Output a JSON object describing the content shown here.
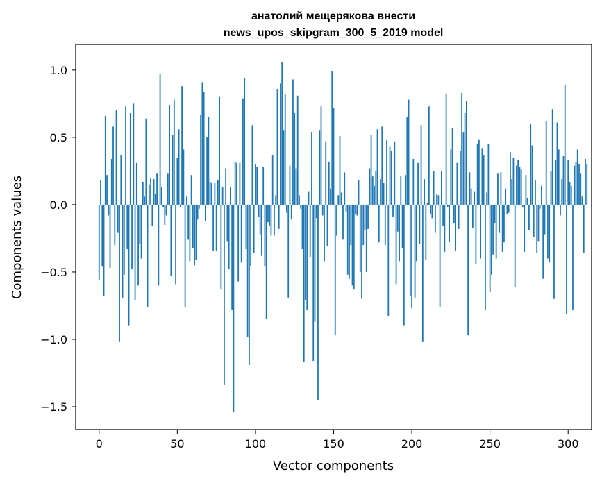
{
  "chart_data": {
    "type": "bar",
    "title_line1": "анатолий мещерякова внести",
    "title_line2": "news_upos_skipgram_300_5_2019 model",
    "xlabel": "Vector components",
    "ylabel": "Components values",
    "xlim": [
      -15,
      315
    ],
    "ylim": [
      -1.67,
      1.19
    ],
    "xticks": [
      0,
      50,
      100,
      150,
      200,
      250,
      300
    ],
    "yticks": [
      -1.5,
      -1.0,
      -0.5,
      0.0,
      0.5,
      1.0
    ],
    "ytick_labels": [
      "−1.5",
      "−1.0",
      "−0.5",
      "0.0",
      "0.5",
      "1.0"
    ],
    "bar_color": "#1f77b4",
    "grid": false,
    "values": [
      -0.56,
      0.18,
      -0.46,
      -0.68,
      0.66,
      0.22,
      -0.08,
      -0.47,
      0.34,
      0.58,
      -0.3,
      0.7,
      -0.21,
      -1.02,
      0.37,
      -0.69,
      -0.52,
      0.73,
      -0.33,
      -0.9,
      0.68,
      -0.48,
      0.75,
      -0.71,
      0.31,
      -0.6,
      -0.29,
      -0.4,
      0.17,
      0.06,
      0.64,
      -0.76,
      0.15,
      0.2,
      -0.16,
      0.19,
      0.08,
      0.23,
      -0.6,
      0.97,
      0.13,
      -0.02,
      -0.15,
      -0.08,
      0.23,
      0.74,
      -0.53,
      0.52,
      0.78,
      -0.59,
      0.35,
      0.56,
      -0.02,
      0.88,
      0.41,
      -0.76,
      0.06,
      -0.26,
      -0.42,
      0.22,
      -0.32,
      -0.45,
      -0.41,
      -0.11,
      -0.03,
      0.67,
      0.91,
      0.84,
      -0.12,
      0.5,
      0.65,
      0.17,
      0.16,
      -0.34,
      0.16,
      -0.34,
      0.18,
      0.8,
      -0.63,
      0.13,
      -1.34,
      0.27,
      -0.27,
      -0.48,
      0.13,
      -0.78,
      -1.54,
      0.32,
      0.31,
      -0.57,
      0.31,
      -0.43,
      0.79,
      0.94,
      -0.33,
      -0.98,
      -1.19,
      -0.46,
      0.59,
      -0.36,
      0.3,
      0.28,
      -0.09,
      -0.22,
      -0.38,
      0.28,
      -0.46,
      -0.85,
      -0.13,
      -0.16,
      -0.23,
      0.37,
      -0.23,
      0.07,
      0.86,
      -0.18,
      0.9,
      1.06,
      0.55,
      0.82,
      -0.06,
      -0.69,
      0.29,
      -0.11,
      0.93,
      0.68,
      0.27,
      0.81,
      0.07,
      -0.03,
      -0.33,
      -1.17,
      -0.71,
      -0.78,
      0.1,
      -0.39,
      0.54,
      -1.16,
      -0.87,
      -0.1,
      -1.45,
      0.55,
      0.73,
      -0.08,
      -0.42,
      0.47,
      -0.31,
      0.32,
      0.12,
      0.99,
      0.72,
      -0.97,
      -0.23,
      0.07,
      0.51,
      0.09,
      -0.26,
      0.24,
      -0.05,
      -0.52,
      -0.55,
      -0.3,
      -0.6,
      -0.63,
      -0.07,
      -0.08,
      0.18,
      -0.5,
      -0.7,
      -0.3,
      -0.19,
      -0.5,
      -0.18,
      0.27,
      0.52,
      0.21,
      0.14,
      0.25,
      0.56,
      -0.28,
      0.19,
      0.58,
      0.16,
      -0.3,
      0.48,
      -0.83,
      0.43,
      0.4,
      -0.09,
      0.47,
      -0.59,
      -0.2,
      -0.42,
      0.21,
      -0.32,
      -0.9,
      0.22,
      0.65,
      0.78,
      -0.68,
      -0.77,
      0.34,
      -0.69,
      -0.42,
      0.31,
      -0.29,
      0.59,
      -1.02,
      0.19,
      -0.41,
      0.01,
      0.73,
      -0.07,
      -0.1,
      0.25,
      -0.21,
      0.08,
      0.07,
      -0.76,
      0.25,
      -0.16,
      -0.35,
      0.82,
      -0.02,
      -0.28,
      0.41,
      0.57,
      -0.14,
      -0.34,
      0.31,
      -0.18,
      0.4,
      0.83,
      0.54,
      0.68,
      0.77,
      -0.97,
      0.24,
      0.12,
      -0.17,
      0.1,
      -0.44,
      0.45,
      0.48,
      -0.4,
      0.42,
      0.37,
      -0.78,
      0.09,
      0.45,
      -0.65,
      -0.52,
      -0.37,
      -0.14,
      -0.4,
      0.23,
      -0.21,
      0.24,
      -0.35,
      -0.28,
      0.12,
      -0.07,
      -0.06,
      0.39,
      0.19,
      0.35,
      -0.61,
      0.29,
      0.33,
      0.28,
      0.26,
      -0.02,
      -0.35,
      0.22,
      0.05,
      -0.19,
      0.6,
      0.44,
      -0.24,
      0.18,
      -0.36,
      -0.27,
      -0.03,
      0.14,
      -0.55,
      -0.22,
      0.62,
      -0.4,
      -0.43,
      0.25,
      0.71,
      -0.7,
      0.33,
      0.61,
      0.41,
      -0.08,
      0.19,
      0.36,
      0.89,
      -0.81,
      0.33,
      0.17,
      0.14,
      -0.78,
      0.29,
      0.32,
      0.41,
      0.3,
      0.23,
      0.06,
      -0.36,
      0.34,
      0.3
    ]
  }
}
